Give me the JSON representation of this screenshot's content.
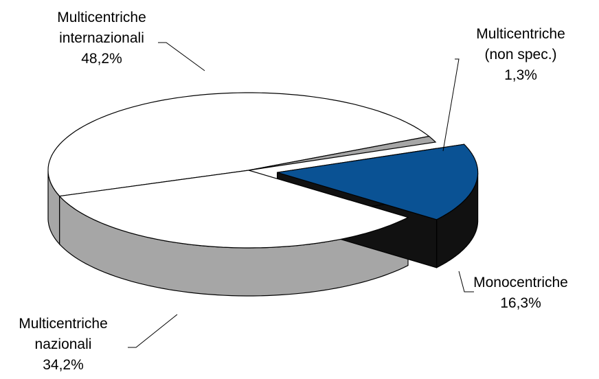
{
  "chart_data": {
    "type": "pie",
    "title": "",
    "legend": "none",
    "slices": [
      {
        "name": "Multicentriche internazionali",
        "label_lines": [
          "Multicentriche",
          "internazionali"
        ],
        "value": 48.2,
        "value_label": "48,2%",
        "color": "#ffffff"
      },
      {
        "name": "Multicentriche (non spec.)",
        "label_lines": [
          "Multicentriche",
          "(non spec.)"
        ],
        "value": 1.3,
        "value_label": "1,3%",
        "color": "#a6a6a6"
      },
      {
        "name": "Monocentriche",
        "label_lines": [
          "Monocentriche"
        ],
        "value": 16.3,
        "value_label": "16,3%",
        "color": "#0a5294",
        "exploded": true
      },
      {
        "name": "Multicentriche nazionali",
        "label_lines": [
          "Multicentriche",
          "nazionali"
        ],
        "value": 34.2,
        "value_label": "34,2%",
        "color": "#ffffff"
      }
    ],
    "colors": {
      "side_light": "#a6a6a6",
      "side_dark": "#111111",
      "outline": "#000000"
    }
  }
}
